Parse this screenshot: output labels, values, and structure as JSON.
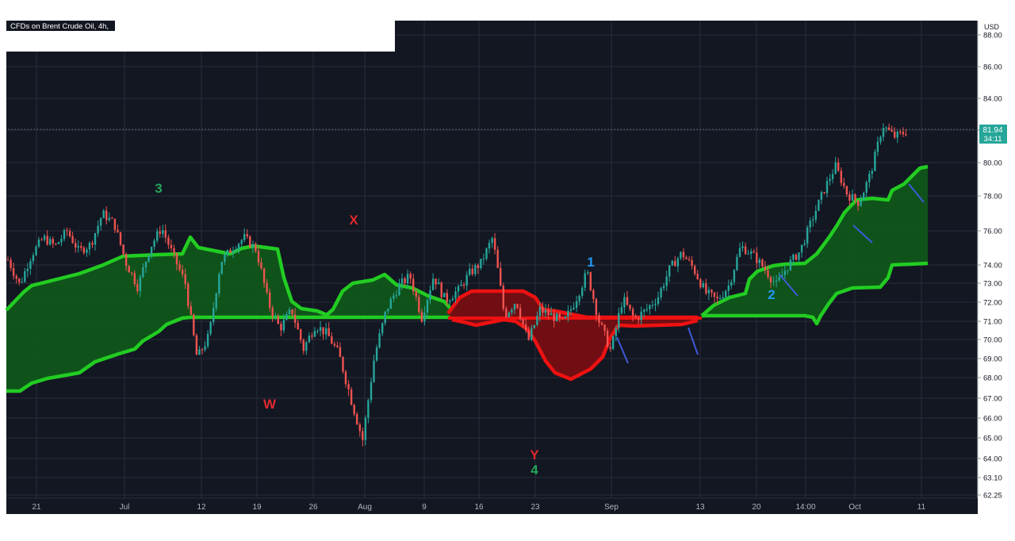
{
  "header": {
    "symbol_title": "CFDs on Brent Crude Oil, 4h,"
  },
  "price_axis": {
    "currency": "USD",
    "last_price": "81.94",
    "countdown": "34:11",
    "ticks": [
      "88.00",
      "86.00",
      "84.00",
      "82.00",
      "80.00",
      "78.00",
      "76.00",
      "74.00",
      "73.00",
      "72.00",
      "71.00",
      "70.00",
      "69.00",
      "68.00",
      "67.00",
      "66.00",
      "65.00",
      "64.00",
      "63.10",
      "62.25"
    ]
  },
  "time_axis": {
    "labels": [
      "21",
      "Jul",
      "12",
      "19",
      "26",
      "Aug",
      "9",
      "16",
      "23",
      "Sep",
      "13",
      "20",
      "14:00",
      "Oct",
      "11"
    ]
  },
  "annotations": {
    "wave_3": "3",
    "wave_W": "W",
    "wave_X": "X",
    "wave_Y": "Y",
    "wave_4": "4",
    "wave_1": "1",
    "wave_2": "2"
  },
  "colors": {
    "background": "#131722",
    "grid": "#2a2e39",
    "up_candle": "#26a69a",
    "down_candle": "#ef5350",
    "cloud_green": "#22cc22",
    "cloud_red": "#ee1111",
    "label_green": "#26a65b",
    "label_red": "#e0282e",
    "label_blue": "#2196f3",
    "price_tag": "#26a69a"
  },
  "chart_data": {
    "type": "line",
    "title": "CFDs on Brent Crude Oil, 4h,",
    "ylabel": "USD",
    "ylim": [
      62.25,
      88.0
    ],
    "x_tick_labels": [
      "21",
      "Jul",
      "12",
      "19",
      "26",
      "Aug",
      "9",
      "16",
      "23",
      "Sep",
      "13",
      "20",
      "14:00",
      "Oct",
      "11"
    ],
    "y_tick_labels": [
      "88.00",
      "86.00",
      "84.00",
      "82.00",
      "80.00",
      "78.00",
      "76.00",
      "74.00",
      "73.00",
      "72.00",
      "71.00",
      "70.00",
      "69.00",
      "68.00",
      "67.00",
      "66.00",
      "65.00",
      "64.00",
      "63.10",
      "62.25"
    ],
    "last_price": 81.94,
    "grid": true,
    "x": [
      0,
      3,
      6,
      9,
      12,
      15,
      18,
      21,
      24,
      27,
      30,
      33,
      36,
      39,
      42,
      45,
      48,
      51,
      54,
      57,
      60,
      63,
      66,
      69,
      72,
      75,
      78,
      81,
      84,
      87,
      90,
      93,
      96,
      99,
      102,
      105,
      108,
      111,
      114
    ],
    "series": [
      {
        "values": [
          74.3,
          72.9,
          74.6,
          75.6,
          75.1,
          76.0,
          74.8,
          75.2,
          77.0,
          76.4,
          74.1,
          72.8,
          75.0,
          76.2,
          74.5,
          73.0,
          69.0,
          70.2,
          74.2,
          75.0,
          75.6,
          74.9,
          72.0,
          70.6,
          71.6,
          69.5,
          70.8,
          70.3,
          69.2,
          67.0,
          64.9,
          69.1,
          71.6,
          72.8,
          73.4,
          71.2,
          73.4,
          72.1,
          72.6
        ]
      },
      {
        "values": [
          72.5,
          73.5,
          74.1,
          75.6,
          71.3,
          72.1,
          69.9,
          71.6,
          71.3,
          70.9,
          72.1,
          73.6,
          71.0,
          69.4,
          72.2,
          71.1,
          71.6,
          72.3,
          73.8,
          74.7,
          73.8,
          72.5,
          72.1,
          72.9,
          75.1,
          74.6,
          73.8,
          72.9,
          74.0,
          74.8,
          76.6,
          78.3,
          79.8,
          78.1,
          77.6,
          79.4,
          82.3,
          81.6,
          81.9
        ]
      }
    ],
    "annotations": [
      "3",
      "W",
      "X",
      "Y",
      "4",
      "1",
      "2"
    ]
  }
}
